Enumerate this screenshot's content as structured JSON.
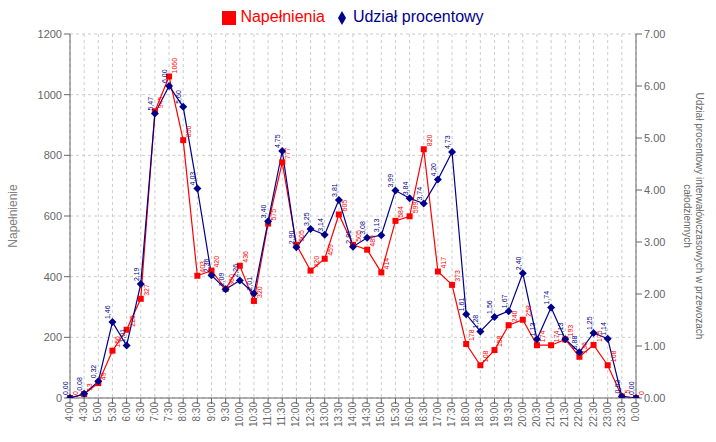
{
  "chart_data": {
    "type": "line",
    "categories": [
      "4:00",
      "4:30",
      "5:00",
      "5:30",
      "6:00",
      "6:30",
      "7:00",
      "7:30",
      "8:00",
      "8:30",
      "9:00",
      "9:30",
      "10:00",
      "10:30",
      "11:00",
      "11:30",
      "12:00",
      "12:30",
      "13:00",
      "13:30",
      "14:00",
      "14:30",
      "15:00",
      "15:30",
      "16:00",
      "16:30",
      "17:00",
      "17:30",
      "18:00",
      "18:30",
      "19:00",
      "19:30",
      "20:00",
      "20:30",
      "21:00",
      "21:30",
      "22:00",
      "22:30",
      "23:00",
      "23:30",
      "0:00"
    ],
    "y_label": "Napełnienie",
    "y2_label": "Udział procentowy interwałówczasowych w przewozach\ncałodziennych",
    "ylim": [
      0,
      1200
    ],
    "yticks": [
      0,
      200,
      400,
      600,
      800,
      1000,
      1200
    ],
    "y2lim": [
      0.0,
      7.0
    ],
    "y2ticks": [
      {
        "value": 0,
        "label": "0.00"
      },
      {
        "value": 1,
        "label": "1.00"
      },
      {
        "value": 2,
        "label": "2.00"
      },
      {
        "value": 3,
        "label": "3.00"
      },
      {
        "value": 4,
        "label": "4.00"
      },
      {
        "value": 5,
        "label": "5.00"
      },
      {
        "value": 6,
        "label": "6.00"
      },
      {
        "value": 7,
        "label": "7.00"
      }
    ],
    "grid": true,
    "legend": "top",
    "data_labels": true,
    "series": [
      {
        "name": "Napełnienia",
        "color": "#FF0000",
        "marker": "square",
        "values": [
          0,
          13,
          49,
          156,
          225,
          327,
          945,
          1060,
          850,
          403,
          420,
          360,
          436,
          320,
          575,
          777,
          505,
          420,
          459,
          605,
          505,
          489,
          414,
          584,
          599,
          820,
          417,
          373,
          178,
          108,
          158,
          240,
          258,
          174,
          174,
          193,
          136,
          175,
          108,
          5,
          0
        ]
      },
      {
        "name": "Udział procentowy",
        "color": "#00008B",
        "marker": "diamond",
        "axis": "y2",
        "values": [
          0.0,
          0.08,
          0.32,
          1.46,
          1.01,
          2.19,
          5.47,
          6.0,
          5.6,
          4.03,
          2.36,
          2.09,
          2.26,
          2.01,
          3.4,
          4.75,
          2.9,
          3.25,
          3.14,
          3.81,
          2.91,
          3.08,
          3.13,
          3.99,
          3.84,
          3.74,
          4.2,
          4.73,
          1.61,
          1.28,
          1.56,
          1.67,
          2.4,
          1.13,
          1.74,
          1.13,
          0.88,
          1.25,
          1.14,
          0.03,
          0.0
        ],
        "value_labels": [
          "0,00",
          "0,08",
          "0,32",
          "1,46",
          "1,01",
          "2,19",
          "5,47",
          "6,00",
          "5,60",
          "4,03",
          "2,36",
          "2,09",
          "2,26",
          "2,01",
          "3,40",
          "4,75",
          "2,90",
          "3,25",
          "3,14",
          "3,81",
          "2,91",
          "3,08",
          "3,13",
          "3,99",
          "3,84",
          "3,74",
          "4,20",
          "4,73",
          "1,61",
          "1,28",
          "1,56",
          "1,67",
          "2,40",
          "1,13",
          "1,74",
          "1,13",
          "0,88",
          "1,25",
          "1,14",
          "0,03",
          "0,00"
        ]
      }
    ]
  }
}
